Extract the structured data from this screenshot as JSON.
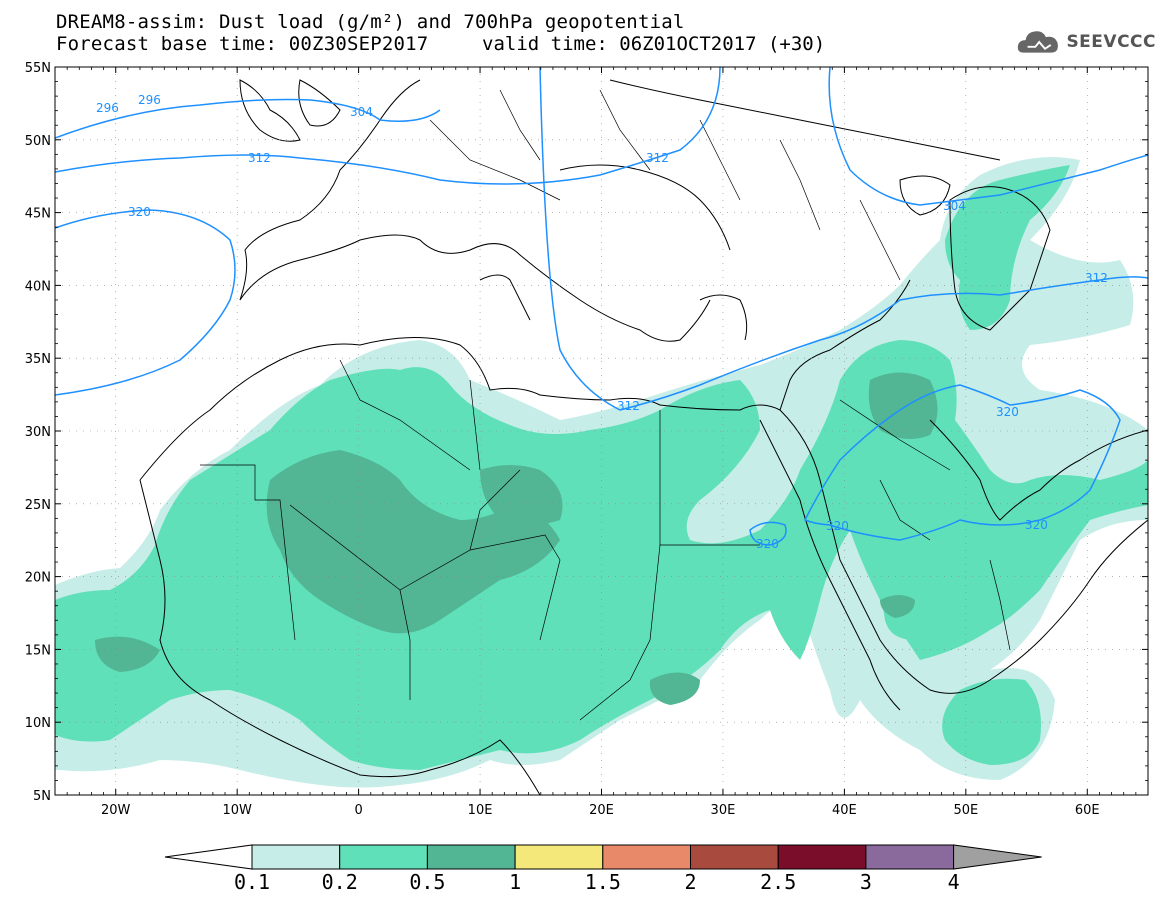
{
  "header": {
    "title_line1": "DREAM8-assim: Dust load (g/m²) and 700hPa geopotential",
    "title_line2_left": "Forecast base time: 00Z30SEP2017",
    "title_line2_right": "valid time: 06Z01OCT2017 (+30)",
    "logo_text": "SEEVCCC"
  },
  "map": {
    "lat_labels": [
      "55N",
      "50N",
      "45N",
      "40N",
      "35N",
      "30N",
      "25N",
      "20N",
      "15N",
      "10N",
      "5N"
    ],
    "lon_labels": [
      "20W",
      "10W",
      "0",
      "10E",
      "20E",
      "30E",
      "40E",
      "50E",
      "60E"
    ],
    "lon_range": [
      -25,
      65
    ],
    "lat_range": [
      5,
      55
    ],
    "contour_labels": [
      "296",
      "296",
      "304",
      "312",
      "312",
      "320",
      "304",
      "312",
      "312",
      "320",
      "320",
      "320",
      "320"
    ],
    "dust_colors": {
      "low": "#c6ede7",
      "mid": "#5fe0b9",
      "high": "#52b594"
    },
    "contour_color": "#1e90ff",
    "coast_color": "#000000"
  },
  "colorbar": {
    "labels": [
      "0.1",
      "0.2",
      "0.5",
      "1",
      "1.5",
      "2",
      "2.5",
      "3",
      "4"
    ],
    "colors": [
      "#c6ede7",
      "#5fe0b9",
      "#52b594",
      "#f5e87a",
      "#e8896a",
      "#a84a3d",
      "#7a0e2a",
      "#8a6a9c",
      "#a0a0a0"
    ]
  }
}
